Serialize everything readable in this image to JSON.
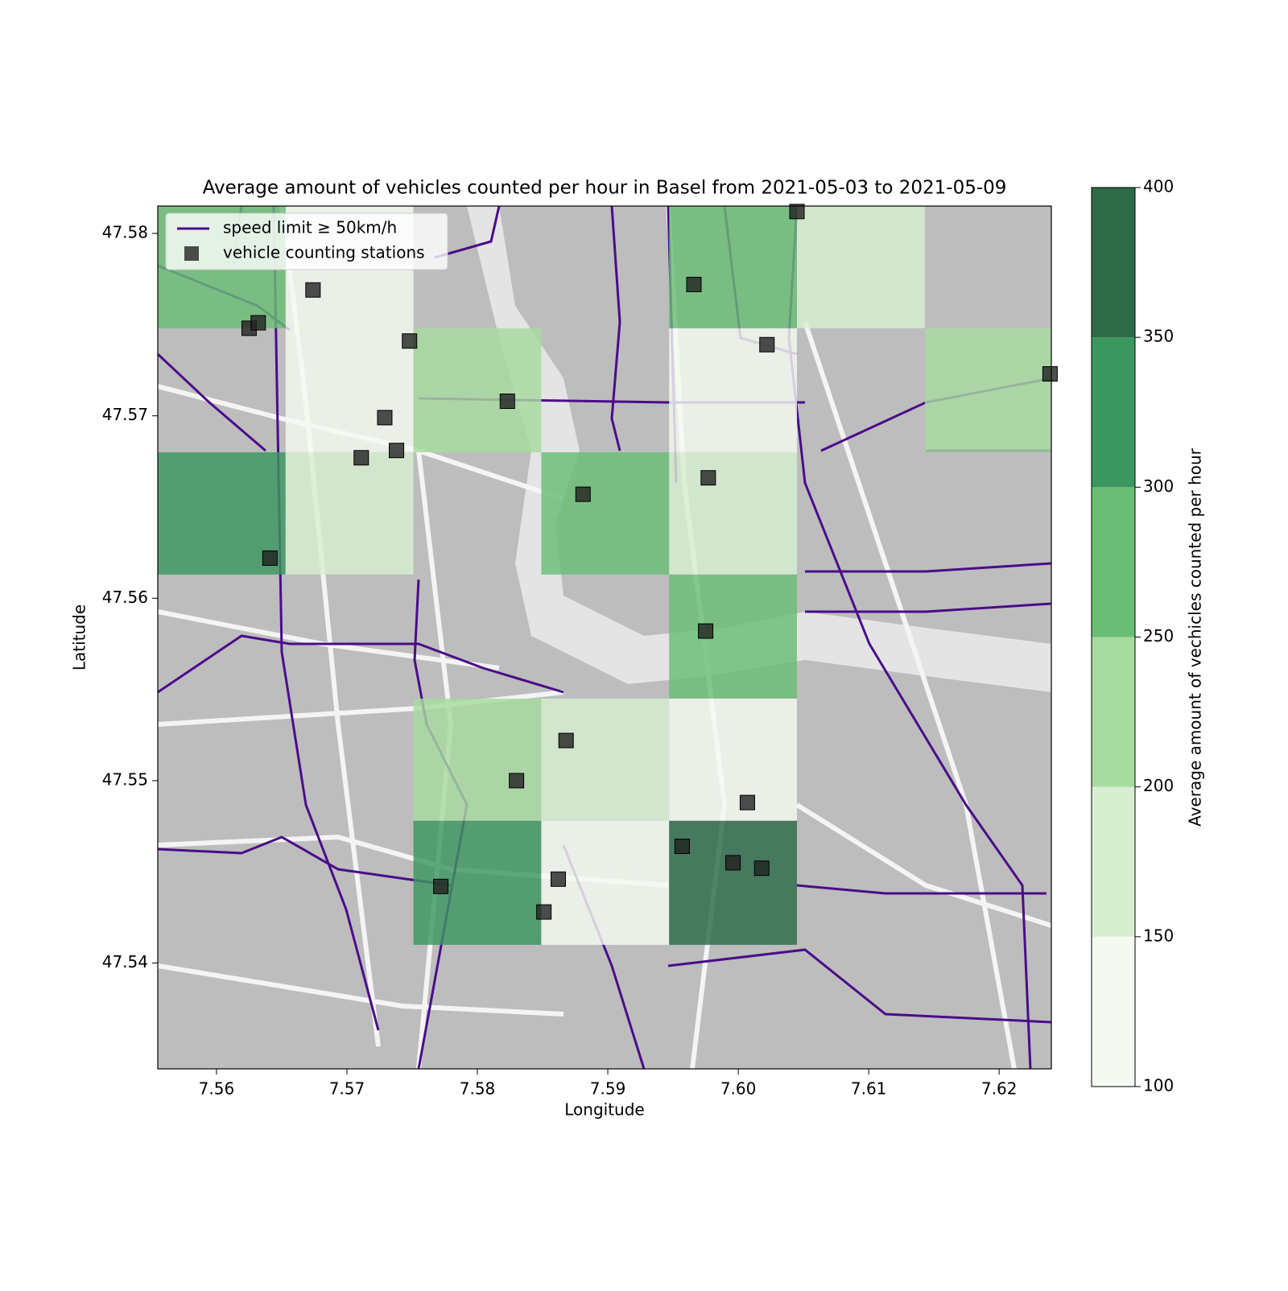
{
  "chart_data": {
    "type": "heatmap-map",
    "title": "Average amount of vehicles counted per hour in Basel from 2021-05-03 to 2021-05-09",
    "x_label": "Longitude",
    "y_label": "Latitude",
    "xlim": [
      7.5555,
      7.624
    ],
    "ylim": [
      47.5342,
      47.5815
    ],
    "xticks": [
      7.56,
      7.57,
      7.58,
      7.59,
      {
        "value": 7.6,
        "label": "7.60"
      },
      7.61,
      7.62
    ],
    "yticks": [
      47.54,
      47.55,
      47.56,
      47.57,
      47.58
    ],
    "x_bins": [
      7.5555,
      7.5653,
      7.5751,
      7.5849,
      7.5947,
      7.6045,
      7.6143,
      7.624
    ],
    "y_bins": [
      47.5815,
      47.5748,
      47.568,
      47.5613,
      47.5545,
      47.5478,
      47.541,
      47.5342
    ],
    "values": [
      [
        270,
        130,
        null,
        null,
        290,
        190,
        null
      ],
      [
        null,
        120,
        210,
        null,
        140,
        null,
        230
      ],
      [
        330,
        180,
        null,
        280,
        170,
        null,
        null
      ],
      [
        null,
        null,
        null,
        null,
        280,
        null,
        null
      ],
      [
        null,
        null,
        220,
        170,
        130,
        null,
        null
      ],
      [
        null,
        null,
        320,
        140,
        370,
        null,
        null
      ],
      [
        null,
        null,
        null,
        null,
        null,
        null,
        null
      ]
    ],
    "colorbar": {
      "label": "Average amount of vechicles counted per hour",
      "ticks": [
        100,
        150,
        200,
        250,
        300,
        350,
        400
      ],
      "colors": [
        "#f4faf1",
        "#d7efd1",
        "#a8dba0",
        "#6abd75",
        "#3c9660",
        "#2c6a48"
      ]
    },
    "roads": {
      "name": "speed limit ≥ 50km/h",
      "color": "#4b0c8a"
    },
    "stations": {
      "name": "vehicle counting stations",
      "color": "#222222",
      "lon": [
        7.5625,
        7.5632,
        7.5674,
        7.5748,
        7.5729,
        7.5711,
        7.5738,
        7.5641,
        7.5823,
        7.5881,
        7.5966,
        7.6045,
        7.6022,
        7.5977,
        7.5975,
        7.5868,
        7.583,
        7.6007,
        7.5957,
        7.5996,
        7.6018,
        7.5772,
        7.5862,
        7.5851,
        7.6239
      ],
      "lat": [
        47.5748,
        47.5751,
        47.5769,
        47.5741,
        47.5699,
        47.5677,
        47.5681,
        47.5622,
        47.5708,
        47.5657,
        47.5772,
        47.5812,
        47.5739,
        47.5666,
        47.5582,
        47.5522,
        47.55,
        47.5488,
        47.5464,
        47.5455,
        47.5452,
        47.5442,
        47.5446,
        47.5428,
        47.5723
      ]
    }
  }
}
